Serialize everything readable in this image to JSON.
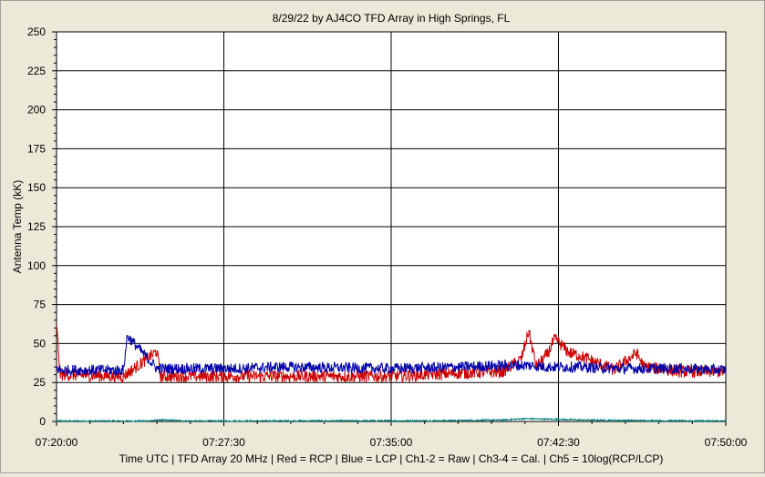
{
  "chart_data": {
    "type": "line",
    "title": "8/29/22  by  AJ4CO TFD Array  in  High Springs, FL",
    "xlabel": "Time UTC | TFD Array 20 MHz | Red = RCP | Blue = LCP | Ch1-2 = Raw | Ch3-4 = Cal. | Ch5 = 10log(RCP/LCP)",
    "ylabel": "Antenna Temp (kK)",
    "ylim": [
      0,
      250
    ],
    "yticks": [
      "0",
      "25",
      "50",
      "75",
      "100",
      "125",
      "150",
      "175",
      "200",
      "225",
      "250"
    ],
    "xlim": [
      "07:20:00",
      "07:50:00"
    ],
    "xticks": [
      "07:20:00",
      "07:27:30",
      "07:35:00",
      "07:42:30",
      "07:50:00"
    ],
    "grid": true,
    "colors": {
      "rcp": "#cc0000",
      "lcp": "#0000aa",
      "ratio": "#008080"
    },
    "series": [
      {
        "key": "rcp",
        "x": [
          "07:20:00",
          "07:20:10",
          "07:23:00",
          "07:24:30",
          "07:24:40",
          "07:25:00",
          "07:28:00",
          "07:30:00",
          "07:35:00",
          "07:38:00",
          "07:40:00",
          "07:40:50",
          "07:41:10",
          "07:41:30",
          "07:42:00",
          "07:42:20",
          "07:43:00",
          "07:43:30",
          "07:45:00",
          "07:46:00",
          "07:46:20",
          "07:48:00",
          "07:50:00"
        ],
        "values": [
          62,
          30,
          29,
          45,
          29,
          29,
          29,
          29,
          29,
          31,
          32,
          40,
          58,
          35,
          43,
          53,
          44,
          42,
          33,
          44,
          35,
          32,
          32
        ]
      },
      {
        "key": "lcp",
        "x": [
          "07:20:00",
          "07:20:10",
          "07:23:00",
          "07:23:10",
          "07:24:30",
          "07:28:00",
          "07:30:00",
          "07:35:00",
          "07:38:00",
          "07:40:00",
          "07:41:10",
          "07:42:00",
          "07:43:30",
          "07:45:00",
          "07:46:20",
          "07:48:00",
          "07:50:00"
        ],
        "values": [
          34,
          33,
          33,
          55,
          34,
          34,
          35,
          34,
          35,
          36,
          36,
          35,
          35,
          34,
          34,
          34,
          33
        ]
      },
      {
        "key": "ratio",
        "x": [
          "07:20:00",
          "07:24:00",
          "07:24:40",
          "07:26:00",
          "07:37:00",
          "07:40:00",
          "07:41:00",
          "07:42:00",
          "07:43:00",
          "07:44:00",
          "07:47:00",
          "07:50:00"
        ],
        "values": [
          0.3,
          0.3,
          1.0,
          0.3,
          0.5,
          1.0,
          1.8,
          1.5,
          1.2,
          0.9,
          0.5,
          0.3
        ]
      }
    ]
  }
}
